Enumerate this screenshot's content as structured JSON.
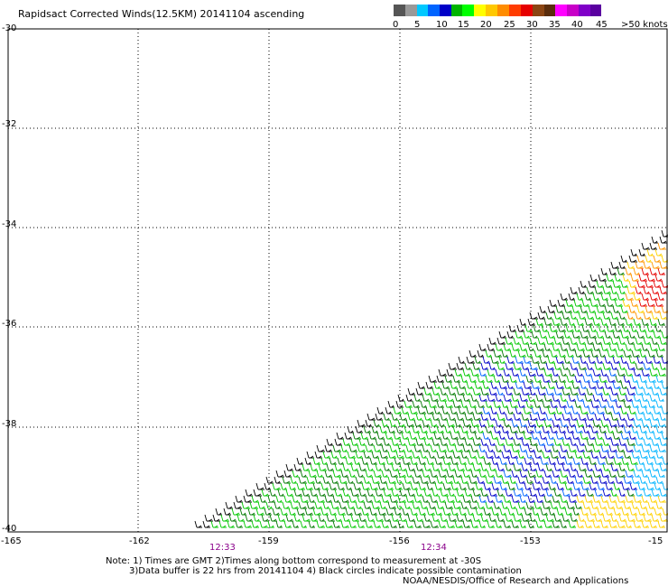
{
  "header": {
    "title": "Rapidsact Corrected Winds(12.5KM) 20141104 ascending"
  },
  "colorbar": {
    "colors": [
      "#555555",
      "#999999",
      "#00c8ff",
      "#0064ff",
      "#0000c8",
      "#00b400",
      "#00ff00",
      "#ffff00",
      "#ffc800",
      "#ff8c00",
      "#ff3c00",
      "#e60000",
      "#8b4513",
      "#5a2d0c",
      "#ff00ff",
      "#c800c8",
      "#8000c8",
      "#5a00a0"
    ],
    "labels": [
      "0",
      "5",
      "10",
      "15",
      "20",
      "25",
      "30",
      "35",
      "40",
      "45",
      ">50 knots"
    ]
  },
  "axes": {
    "y_ticks": [
      "-30",
      "-32",
      "-34",
      "-36",
      "-38",
      "-40"
    ],
    "x_ticks": [
      "-165",
      "-162",
      "-159",
      "-156",
      "-153",
      "-15"
    ],
    "x_range": [
      -165,
      -150
    ],
    "y_range": [
      -40,
      -30
    ],
    "gridlines": "dotted"
  },
  "times": [
    "12:33",
    "12:34"
  ],
  "notes": {
    "line1": "Note: 1) Times are GMT 2)Times along bottom correspond to measurement at -30S",
    "line2": "3)Data buffer is 22 hrs from 20141104 4) Black circles indicate possible contamination",
    "line3": "NOAA/NESDIS/Office of Research and Applications"
  },
  "wind_colors": {
    "black": "#000000",
    "dark_green": "#007800",
    "green": "#00c800",
    "dark_blue": "#0000c8",
    "blue": "#0064ff",
    "cyan": "#00b4ff",
    "yellow": "#ffd200",
    "orange": "#ff9600",
    "red": "#e60000"
  }
}
